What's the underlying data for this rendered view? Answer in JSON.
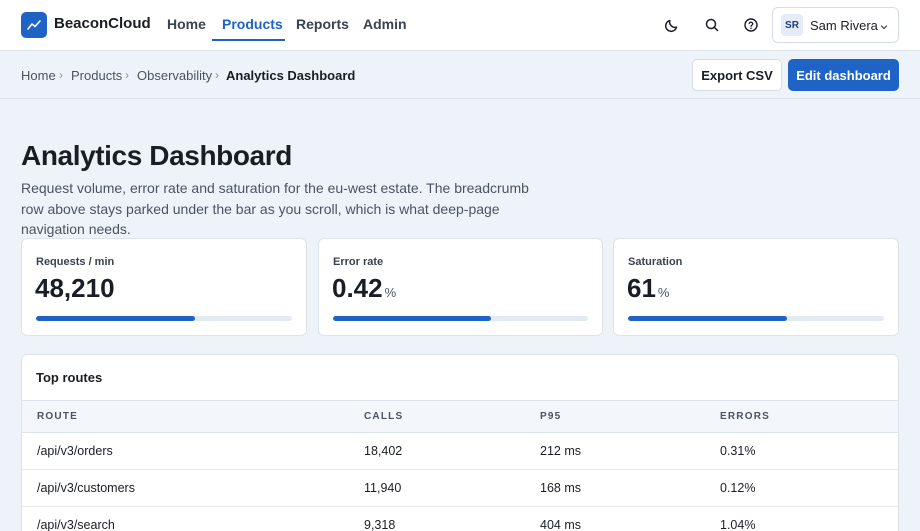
{
  "brand": {
    "name": "BeaconCloud"
  },
  "nav": {
    "items": [
      {
        "label": "Home"
      },
      {
        "label": "Products"
      },
      {
        "label": "Reports"
      },
      {
        "label": "Admin"
      }
    ]
  },
  "header_icons": [
    "moon-icon",
    "search-icon",
    "help-icon"
  ],
  "user": {
    "initials": "SR",
    "name": "Sam Rivera"
  },
  "breadcrumb": {
    "items": [
      "Home",
      "Products",
      "Observability"
    ],
    "current": "Analytics Dashboard",
    "separator": "›"
  },
  "actions": {
    "export_label": "Export CSV",
    "edit_label": "Edit dashboard"
  },
  "page": {
    "title": "Analytics Dashboard",
    "description": "Request volume, error rate and saturation for the eu-west estate. The breadcrumb row above stays parked under the bar as you scroll, which is what deep-page navigation needs."
  },
  "stats": [
    {
      "label": "Requests / min",
      "value": "48,210",
      "unit": "",
      "progress": 0.62
    },
    {
      "label": "Error rate",
      "value": "0.42",
      "unit": "%",
      "progress": 0.62
    },
    {
      "label": "Saturation",
      "value": "61",
      "unit": "%",
      "progress": 0.62
    }
  ],
  "table": {
    "title": "Top routes",
    "columns": [
      "ROUTE",
      "CALLS",
      "P95",
      "ERRORS"
    ],
    "rows": [
      [
        "/api/v3/orders",
        "18,402",
        "212 ms",
        "0.31%"
      ],
      [
        "/api/v3/customers",
        "11,940",
        "168 ms",
        "0.12%"
      ],
      [
        "/api/v3/search",
        "9,318",
        "404 ms",
        "1.04%"
      ]
    ]
  },
  "colors": {
    "accent": "#1f63c7",
    "background": "#eef3fa",
    "card": "#ffffff",
    "border": "#dfe4ec"
  }
}
